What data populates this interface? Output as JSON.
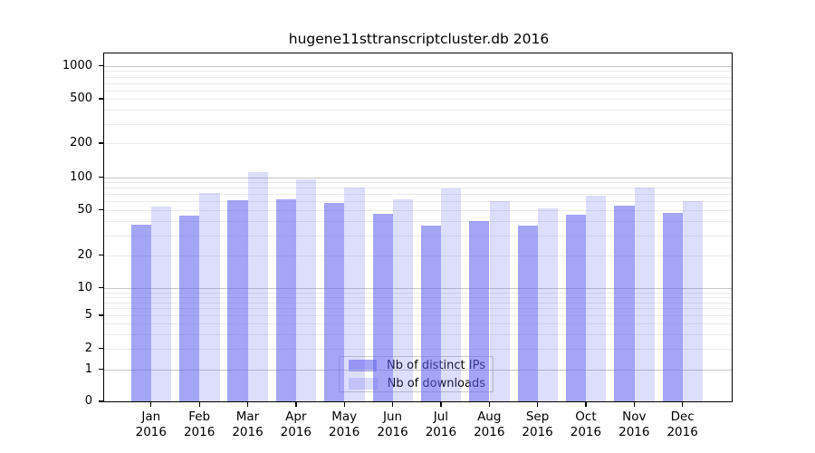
{
  "title": "hugene11sttranscriptcluster.db 2016",
  "colors": {
    "bar_distinct_ips": "rgba(100,100,240,0.58)",
    "bar_downloads": "rgba(100,100,240,0.22)",
    "legend_swatch_distinct_ips": "#a5a5f6",
    "legend_swatch_downloads": "#ddddfb",
    "grid_decade": "#c6c6c6",
    "grid_minor": "#eaeaea"
  },
  "legend": {
    "items": [
      {
        "label": "Nb of distinct IPs",
        "color": "#a5a5f6"
      },
      {
        "label": "Nb of downloads",
        "color": "#ddddfb"
      }
    ]
  },
  "y_axis": {
    "tick_labels": [
      "1000",
      "500",
      "200",
      "100",
      "50",
      "20",
      "10",
      "5",
      "2",
      "1",
      "0"
    ]
  },
  "x_axis": {
    "months": [
      "Jan",
      "Feb",
      "Mar",
      "Apr",
      "May",
      "Jun",
      "Jul",
      "Aug",
      "Sep",
      "Oct",
      "Nov",
      "Dec"
    ],
    "year": "2016"
  },
  "chart_data": {
    "type": "bar",
    "title": "hugene11sttranscriptcluster.db 2016",
    "categories": [
      "Jan 2016",
      "Feb 2016",
      "Mar 2016",
      "Apr 2016",
      "May 2016",
      "Jun 2016",
      "Jul 2016",
      "Aug 2016",
      "Sep 2016",
      "Oct 2016",
      "Nov 2016",
      "Dec 2016"
    ],
    "series": [
      {
        "name": "Nb of distinct IPs",
        "values": [
          37,
          44,
          61,
          63,
          58,
          46,
          36,
          40,
          36,
          45,
          55,
          47
        ]
      },
      {
        "name": "Nb of downloads",
        "values": [
          53,
          72,
          110,
          95,
          80,
          62,
          79,
          60,
          51,
          68,
          80,
          60
        ]
      }
    ],
    "xlabel": "",
    "ylabel": "",
    "y_scale": "log-like",
    "y_ticks": [
      0,
      1,
      2,
      5,
      10,
      20,
      50,
      100,
      200,
      500,
      1000
    ],
    "ylim": [
      0,
      1400
    ],
    "grid": true,
    "legend_position": "lower center"
  }
}
